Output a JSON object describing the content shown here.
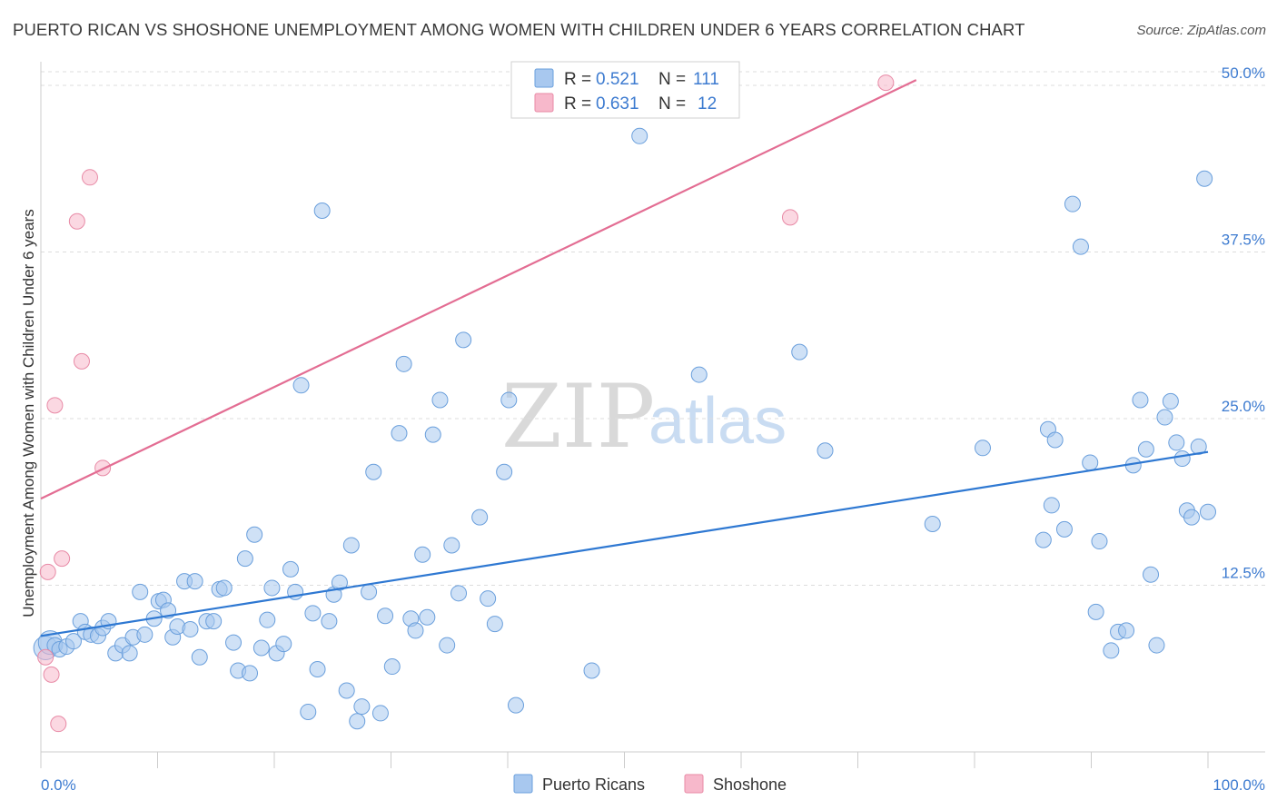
{
  "title": "PUERTO RICAN VS SHOSHONE UNEMPLOYMENT AMONG WOMEN WITH CHILDREN UNDER 6 YEARS CORRELATION CHART",
  "source": "Source: ZipAtlas.com",
  "watermark": {
    "zip": "ZIP",
    "atlas": "atlas"
  },
  "colors": {
    "blue_fill": "#a8c8ef",
    "blue_stroke": "#6a9fdc",
    "blue_line": "#2e78d2",
    "pink_fill": "#f7b8cb",
    "pink_stroke": "#e88aa6",
    "pink_line": "#e36d93",
    "tick_text": "#3d7bd0",
    "grid": "#dddddd"
  },
  "legend": {
    "rows": [
      {
        "r_label": "R =",
        "r_value": "0.521",
        "n_label": "N =",
        "n_value": "111"
      },
      {
        "r_label": "R =",
        "r_value": "0.631",
        "n_label": "N =",
        "n_value": "12"
      }
    ]
  },
  "chart_data": {
    "type": "scatter",
    "title": "PUERTO RICAN VS SHOSHONE UNEMPLOYMENT AMONG WOMEN WITH CHILDREN UNDER 6 YEARS CORRELATION CHART",
    "xlabel": "",
    "ylabel": "Unemployment Among Women with Children Under 6 years",
    "xlim": [
      0,
      100
    ],
    "ylim": [
      0,
      51.5
    ],
    "x_tick_labels": [
      "0.0%",
      "100.0%"
    ],
    "y_ticks": [
      12.5,
      25.0,
      37.5,
      50.0
    ],
    "y_tick_labels": [
      "12.5%",
      "25.0%",
      "37.5%",
      "50.0%"
    ],
    "grid": true,
    "legend_position": "top-center",
    "series": [
      {
        "name": "Puerto Ricans",
        "color": "#a8c8ef",
        "trend": {
          "x": [
            0,
            100
          ],
          "y": [
            8.7,
            22.5
          ]
        },
        "points": [
          [
            0.4,
            7.8
          ],
          [
            0.8,
            8.2
          ],
          [
            1.2,
            8.0
          ],
          [
            1.6,
            7.7
          ],
          [
            2.2,
            7.9
          ],
          [
            2.8,
            8.3
          ],
          [
            3.4,
            9.8
          ],
          [
            3.8,
            9.0
          ],
          [
            4.3,
            8.8
          ],
          [
            4.9,
            8.7
          ],
          [
            5.3,
            9.3
          ],
          [
            5.8,
            9.8
          ],
          [
            6.4,
            7.4
          ],
          [
            7.0,
            8.0
          ],
          [
            7.6,
            7.4
          ],
          [
            7.9,
            8.6
          ],
          [
            8.5,
            12.0
          ],
          [
            8.9,
            8.8
          ],
          [
            9.7,
            10.0
          ],
          [
            10.1,
            11.3
          ],
          [
            10.5,
            11.4
          ],
          [
            10.9,
            10.6
          ],
          [
            11.3,
            8.6
          ],
          [
            11.7,
            9.4
          ],
          [
            12.3,
            12.8
          ],
          [
            12.8,
            9.2
          ],
          [
            13.2,
            12.8
          ],
          [
            13.6,
            7.1
          ],
          [
            14.2,
            9.8
          ],
          [
            14.8,
            9.8
          ],
          [
            15.3,
            12.2
          ],
          [
            15.7,
            12.3
          ],
          [
            16.5,
            8.2
          ],
          [
            16.9,
            6.1
          ],
          [
            17.9,
            5.9
          ],
          [
            18.3,
            16.3
          ],
          [
            17.5,
            14.5
          ],
          [
            18.9,
            7.8
          ],
          [
            19.4,
            9.9
          ],
          [
            19.8,
            12.3
          ],
          [
            20.2,
            7.4
          ],
          [
            20.8,
            8.1
          ],
          [
            21.4,
            13.7
          ],
          [
            21.8,
            12.0
          ],
          [
            22.3,
            27.5
          ],
          [
            22.9,
            3.0
          ],
          [
            23.3,
            10.4
          ],
          [
            23.7,
            6.2
          ],
          [
            24.1,
            40.6
          ],
          [
            24.7,
            9.8
          ],
          [
            25.1,
            11.8
          ],
          [
            25.6,
            12.7
          ],
          [
            26.2,
            4.6
          ],
          [
            26.6,
            15.5
          ],
          [
            27.1,
            2.3
          ],
          [
            27.5,
            3.4
          ],
          [
            28.1,
            12.0
          ],
          [
            28.5,
            21.0
          ],
          [
            29.1,
            2.9
          ],
          [
            29.5,
            10.2
          ],
          [
            30.1,
            6.4
          ],
          [
            30.7,
            23.9
          ],
          [
            31.1,
            29.1
          ],
          [
            31.7,
            10.0
          ],
          [
            32.1,
            9.1
          ],
          [
            32.7,
            14.8
          ],
          [
            33.1,
            10.1
          ],
          [
            33.6,
            23.8
          ],
          [
            34.2,
            26.4
          ],
          [
            34.8,
            8.0
          ],
          [
            35.2,
            15.5
          ],
          [
            35.8,
            11.9
          ],
          [
            36.2,
            30.9
          ],
          [
            37.6,
            17.6
          ],
          [
            38.3,
            11.5
          ],
          [
            38.9,
            9.6
          ],
          [
            39.7,
            21.0
          ],
          [
            40.1,
            26.4
          ],
          [
            40.7,
            3.5
          ],
          [
            47.2,
            6.1
          ],
          [
            51.3,
            46.2
          ],
          [
            56.4,
            28.3
          ],
          [
            65.0,
            30.0
          ],
          [
            67.2,
            22.6
          ],
          [
            76.4,
            17.1
          ],
          [
            80.7,
            22.8
          ],
          [
            85.9,
            15.9
          ],
          [
            86.3,
            24.2
          ],
          [
            86.6,
            18.5
          ],
          [
            86.9,
            23.4
          ],
          [
            87.7,
            16.7
          ],
          [
            88.4,
            41.1
          ],
          [
            89.1,
            37.9
          ],
          [
            89.9,
            21.7
          ],
          [
            90.4,
            10.5
          ],
          [
            90.7,
            15.8
          ],
          [
            91.7,
            7.6
          ],
          [
            92.3,
            9.0
          ],
          [
            93.0,
            9.1
          ],
          [
            93.6,
            21.5
          ],
          [
            94.2,
            26.4
          ],
          [
            94.7,
            22.7
          ],
          [
            95.1,
            13.3
          ],
          [
            95.6,
            8.0
          ],
          [
            96.3,
            25.1
          ],
          [
            96.8,
            26.3
          ],
          [
            97.3,
            23.2
          ],
          [
            97.8,
            22.0
          ],
          [
            98.2,
            18.1
          ],
          [
            98.6,
            17.6
          ],
          [
            99.2,
            22.9
          ],
          [
            99.7,
            43.0
          ],
          [
            100.0,
            18.0
          ]
        ]
      },
      {
        "name": "Shoshone",
        "color": "#f7b8cb",
        "trend": {
          "x": [
            0,
            75
          ],
          "y": [
            19.0,
            50.4
          ]
        },
        "points": [
          [
            0.4,
            7.1
          ],
          [
            0.6,
            13.5
          ],
          [
            0.9,
            5.8
          ],
          [
            1.2,
            26.0
          ],
          [
            1.5,
            2.1
          ],
          [
            1.8,
            14.5
          ],
          [
            3.1,
            39.8
          ],
          [
            3.5,
            29.3
          ],
          [
            4.2,
            43.1
          ],
          [
            5.3,
            21.3
          ],
          [
            64.2,
            40.1
          ],
          [
            72.4,
            50.2
          ]
        ]
      }
    ]
  },
  "bottom_legend": {
    "items": [
      "Puerto Ricans",
      "Shoshone"
    ]
  }
}
